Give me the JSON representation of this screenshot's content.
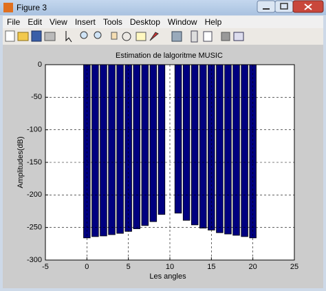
{
  "window": {
    "title": "Figure 3",
    "menu": [
      "File",
      "Edit",
      "View",
      "Insert",
      "Tools",
      "Desktop",
      "Window",
      "Help"
    ]
  },
  "chart_data": {
    "type": "bar",
    "title": "Estimation de lalgoritme MUSIC",
    "x_label": "Les angles",
    "y_label": "Amplitudes(dB)",
    "x": [
      0,
      1,
      2,
      3,
      4,
      5,
      6,
      7,
      8,
      9,
      10,
      11,
      12,
      13,
      14,
      15,
      16,
      17,
      18,
      19,
      20
    ],
    "values": [
      -266,
      -264,
      -263,
      -261,
      -259,
      -256,
      -252,
      -247,
      -241,
      -230,
      0,
      -228,
      -239,
      -246,
      -251,
      -254,
      -258,
      -260,
      -262,
      -264,
      -266
    ],
    "color": "#000080",
    "xlim": [
      -5,
      25
    ],
    "ylim": [
      -300,
      0
    ],
    "xticks": [
      -5,
      0,
      5,
      10,
      15,
      20,
      25
    ],
    "yticks": [
      -300,
      -250,
      -200,
      -150,
      -100,
      -50,
      0
    ],
    "grid": true
  }
}
